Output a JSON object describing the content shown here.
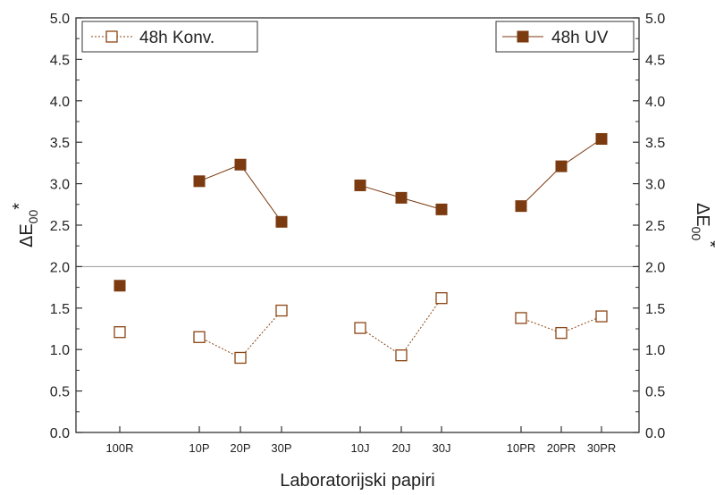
{
  "chart_data": {
    "type": "scatter",
    "xlabel": "Laboratorijski papiri",
    "ylabel_left": "ΔE",
    "ylabel_right": "ΔE",
    "ylabel_subscript": "00",
    "ylabel_superscript": "*",
    "ylim": [
      0,
      5
    ],
    "yticks": [
      "0.0",
      "0.5",
      "1.0",
      "1.5",
      "2.0",
      "2.5",
      "3.0",
      "3.5",
      "4.0",
      "4.5",
      "5.0"
    ],
    "categories": [
      "100R",
      "10P",
      "20P",
      "30P",
      "10J",
      "20J",
      "30J",
      "10PR",
      "20PR",
      "30PR"
    ],
    "groups": [
      [
        0
      ],
      [
        1,
        2,
        3
      ],
      [
        4,
        5,
        6
      ],
      [
        7,
        8,
        9
      ]
    ],
    "reference_line": 2.0,
    "series": [
      {
        "name": "48h Konv.",
        "marker": "open-square",
        "line": "dotted",
        "color": "#8B4513",
        "values": [
          1.21,
          1.15,
          0.9,
          1.47,
          1.26,
          0.93,
          1.62,
          1.38,
          1.2,
          1.4
        ]
      },
      {
        "name": "48h UV",
        "marker": "filled-square",
        "line": "solid",
        "color": "#7B3A10",
        "values": [
          1.77,
          3.03,
          3.23,
          2.54,
          2.98,
          2.83,
          2.69,
          2.73,
          3.21,
          3.54
        ]
      }
    ],
    "legend": [
      {
        "position": "top-left",
        "series": "48h Konv."
      },
      {
        "position": "top-right",
        "series": "48h UV"
      }
    ]
  }
}
